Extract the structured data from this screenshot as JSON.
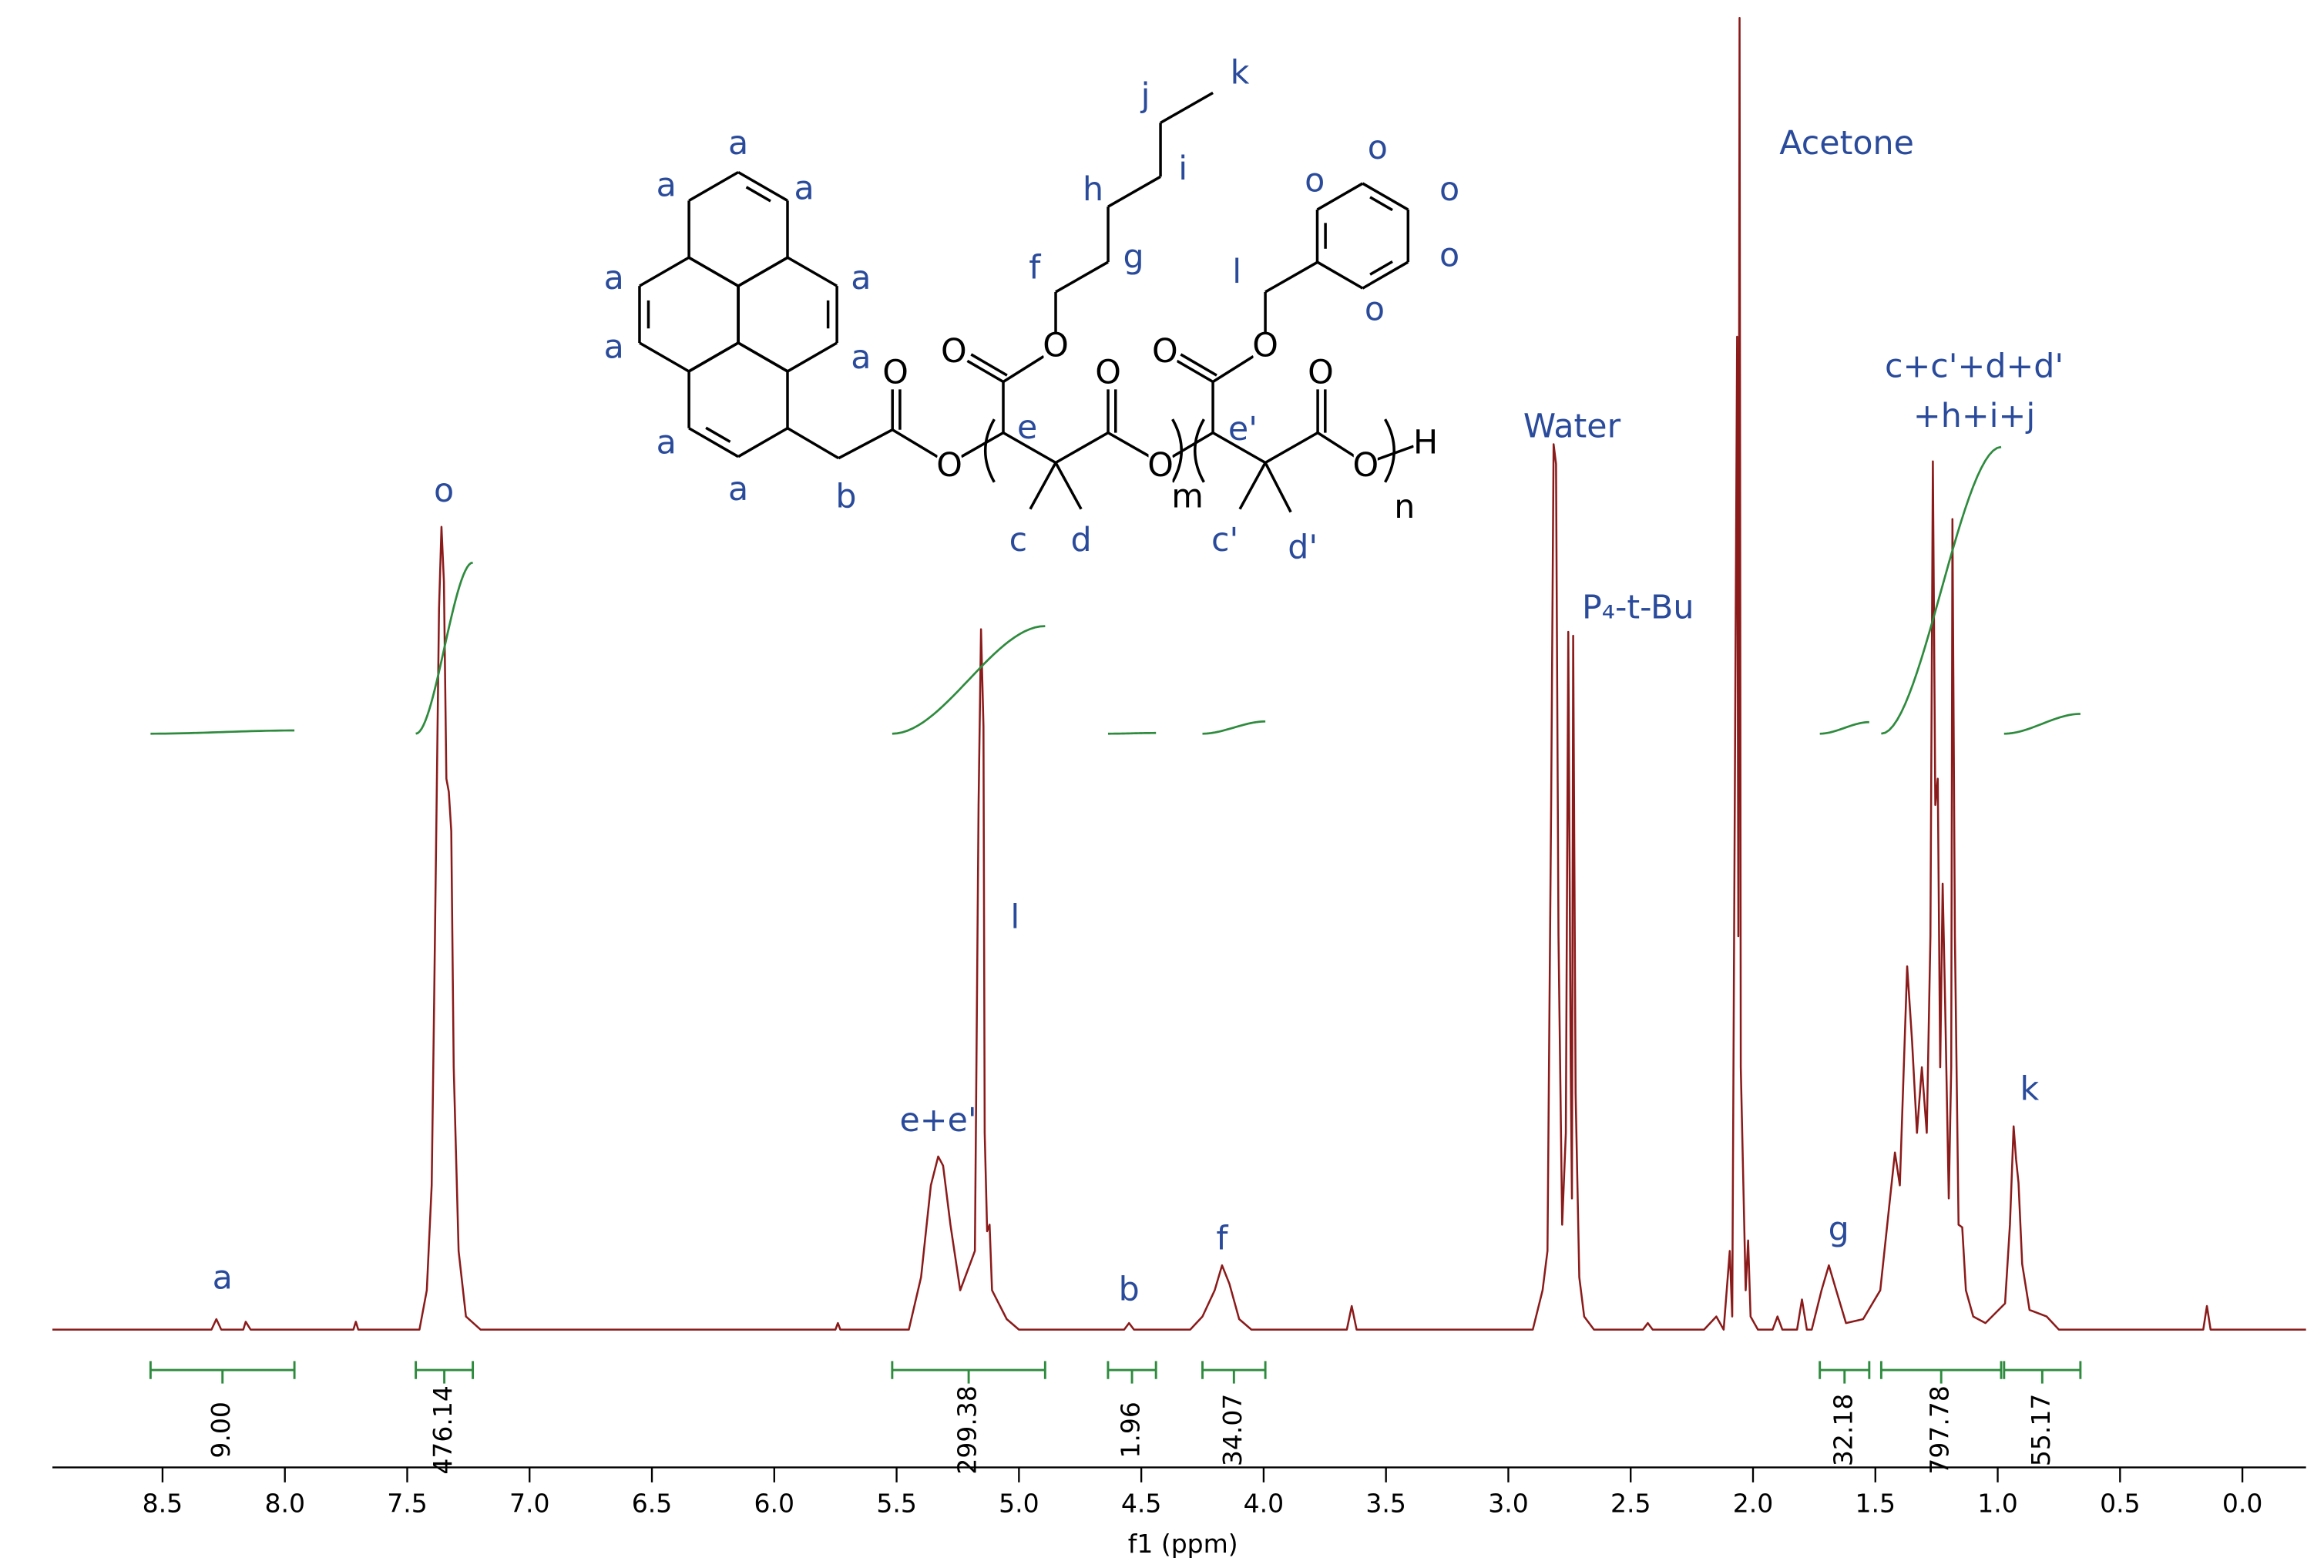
{
  "chart_data": {
    "type": "line",
    "x_label": "f1 (ppm)",
    "color": "#8b1a1a",
    "integral_color": "#2e8b3e",
    "label_color": "#2a4b9b",
    "xlim": [
      8.95,
      -0.26
    ],
    "ylim": [
      0,
      100
    ],
    "xticks": [
      8.5,
      {
        "value": 8,
        "label": "8.0"
      },
      7.5,
      {
        "value": 7,
        "label": "7.0"
      },
      6.5,
      {
        "value": 6,
        "label": "6.0"
      },
      5.5,
      {
        "value": 5,
        "label": "5.0"
      },
      4.5,
      {
        "value": 4,
        "label": "4.0"
      },
      3.5,
      {
        "value": 3,
        "label": "3.0"
      },
      2.5,
      {
        "value": 2,
        "label": "2.0"
      },
      1.5,
      {
        "value": 1,
        "label": "1.0"
      },
      0.5,
      {
        "value": 0,
        "label": "0.0"
      }
    ],
    "x": [
      8.95,
      8.3,
      8.28,
      8.26,
      8.17,
      8.16,
      8.14,
      7.72,
      7.71,
      7.7,
      7.45,
      7.42,
      7.4,
      7.39,
      7.37,
      7.36,
      7.35,
      7.34,
      7.33,
      7.32,
      7.31,
      7.29,
      7.26,
      7.2,
      5.75,
      5.74,
      5.73,
      5.45,
      5.4,
      5.36,
      5.33,
      5.31,
      5.28,
      5.24,
      5.2,
      5.18,
      5.165,
      5.155,
      5.145,
      5.14,
      5.13,
      5.12,
      5.11,
      5.05,
      5.0,
      4.57,
      4.55,
      4.53,
      4.3,
      4.25,
      4.2,
      4.17,
      4.14,
      4.1,
      4.05,
      3.66,
      3.64,
      3.62,
      2.9,
      2.86,
      2.84,
      2.825,
      2.815,
      2.805,
      2.795,
      2.78,
      2.765,
      2.755,
      2.745,
      2.74,
      2.735,
      2.725,
      2.71,
      2.69,
      2.65,
      2.45,
      2.43,
      2.41,
      2.2,
      2.15,
      2.12,
      2.095,
      2.085,
      2.065,
      2.06,
      2.055,
      2.05,
      2.03,
      2.02,
      2.01,
      1.98,
      1.92,
      1.9,
      1.88,
      1.82,
      1.8,
      1.78,
      1.76,
      1.72,
      1.69,
      1.66,
      1.62,
      1.55,
      1.48,
      1.44,
      1.42,
      1.4,
      1.37,
      1.35,
      1.33,
      1.31,
      1.29,
      1.275,
      1.265,
      1.255,
      1.245,
      1.235,
      1.225,
      1.215,
      1.2,
      1.19,
      1.185,
      1.175,
      1.16,
      1.145,
      1.13,
      1.1,
      1.05,
      0.97,
      0.95,
      0.935,
      0.925,
      0.915,
      0.9,
      0.87,
      0.8,
      0.75,
      0.16,
      0.145,
      0.13,
      -0.26
    ],
    "values": [
      0,
      0,
      0.8,
      0,
      0,
      0.6,
      0,
      0,
      0.6,
      0,
      0,
      3,
      11,
      25,
      55,
      61.2,
      57,
      42,
      41,
      38,
      20,
      6,
      1,
      0,
      0,
      0.5,
      0,
      0,
      4,
      11,
      13.2,
      12.5,
      8,
      3,
      5,
      6,
      40,
      53.4,
      46,
      15,
      7.5,
      8,
      3,
      0.8,
      0,
      0,
      0.5,
      0,
      0,
      1,
      3,
      4.9,
      3.5,
      0.8,
      0,
      0,
      1.8,
      0,
      0,
      3,
      6,
      40,
      67.5,
      66,
      30,
      8,
      15,
      53.2,
      20,
      10,
      52.9,
      18,
      4,
      1,
      0,
      0,
      0.5,
      0,
      0,
      1,
      0,
      6,
      1,
      75.7,
      30,
      100,
      20,
      3,
      6.8,
      1,
      0,
      0,
      1,
      0,
      0,
      2.3,
      0,
      0,
      3,
      4.9,
      3,
      0.5,
      0.8,
      3,
      10,
      13.5,
      11,
      27.7,
      22,
      15,
      20,
      15,
      30,
      66.2,
      40,
      42,
      20,
      34,
      25,
      10,
      20,
      61.8,
      30,
      8,
      7.8,
      3,
      1,
      0.5,
      2,
      8,
      15.5,
      13,
      11.2,
      5,
      1.5,
      1,
      0,
      0,
      1.8,
      0,
      0
    ],
    "annotations": [
      {
        "text": "a",
        "x": 8.255,
        "y": 3.8
      },
      {
        "text": "o",
        "x": 7.35,
        "y": 63.8
      },
      {
        "text": "e+e'",
        "x": 5.33,
        "y": 15.8
      },
      {
        "text": "l",
        "x": 5.016,
        "y": 31.3
      },
      {
        "text": "b",
        "x": 4.55,
        "y": 2.9
      },
      {
        "text": "f",
        "x": 4.17,
        "y": 6.8
      },
      {
        "text": "Water",
        "x": 2.74,
        "y": 68.7
      },
      {
        "text": "P₄-t-Bu",
        "x": 2.47,
        "y": 54.9
      },
      {
        "text": "Acetone",
        "x": 1.617,
        "y": 90.3
      },
      {
        "text": "g",
        "x": 1.65,
        "y": 7.5
      },
      {
        "text": "c+c'+d+d'",
        "x": 1.096,
        "y": 73.3
      },
      {
        "text": "+h+i+j",
        "x": 1.096,
        "y": 69.5
      },
      {
        "text": "k",
        "x": 0.87,
        "y": 18.2
      }
    ],
    "integrals": [
      {
        "from": 8.549,
        "to": 7.961,
        "value": 9,
        "label": "9.00"
      },
      {
        "from": 7.465,
        "to": 7.232,
        "value": 476.14,
        "label": "476.14"
      },
      {
        "from": 5.518,
        "to": 4.893,
        "value": 299.38,
        "label": "299.38"
      },
      {
        "from": 4.636,
        "to": 4.44,
        "value": 1.96,
        "label": "1.96"
      },
      {
        "from": 4.25,
        "to": 3.993,
        "value": 34.07,
        "label": "34.07"
      },
      {
        "from": 1.727,
        "to": 1.525,
        "value": 32.18,
        "label": "32.18"
      },
      {
        "from": 1.476,
        "to": 0.986,
        "value": 797.78,
        "label": "797.78"
      },
      {
        "from": 0.974,
        "to": 0.662,
        "value": 55.17,
        "label": "55.17"
      }
    ]
  },
  "structure": {
    "proton_labels": [
      "a",
      "a",
      "a",
      "a",
      "a",
      "a",
      "a",
      "a",
      "a",
      "b",
      "c",
      "d",
      "e",
      "f",
      "g",
      "h",
      "i",
      "j",
      "k",
      "l",
      "o",
      "o",
      "o",
      "o",
      "o",
      "e'",
      "c'",
      "d'"
    ],
    "atom_labels": [
      "O",
      "O",
      "O",
      "O",
      "O",
      "O",
      "O",
      "O",
      "O",
      "O",
      "H",
      "m",
      "n"
    ]
  }
}
